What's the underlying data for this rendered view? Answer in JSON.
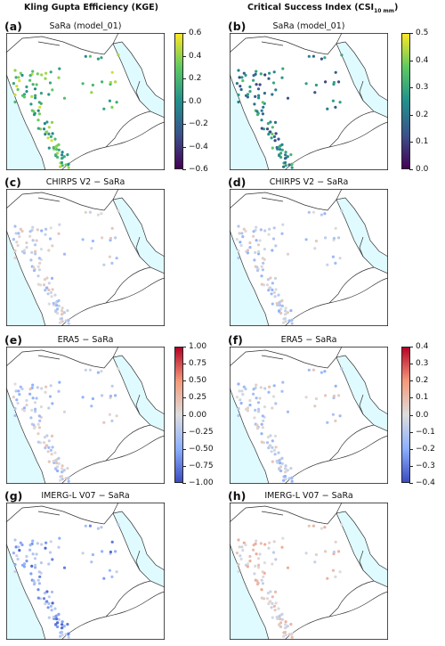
{
  "columns": {
    "left": "Kling Gupta Efficiency (KGE)",
    "right_main": "Critical Success Index (CSI",
    "right_sub": "10 mm",
    "right_close": ")"
  },
  "panels": [
    {
      "id": "a",
      "letter": "(a)",
      "title": "SaRa (model_01)",
      "palette": "viridis",
      "col": 0,
      "row": 0
    },
    {
      "id": "b",
      "letter": "(b)",
      "title": "SaRa (model_01)",
      "palette": "viridis",
      "col": 1,
      "row": 0
    },
    {
      "id": "c",
      "letter": "(c)",
      "title": "CHIRPS V2 − SaRa",
      "palette": "diverging",
      "col": 0,
      "row": 1
    },
    {
      "id": "d",
      "letter": "(d)",
      "title": "CHIRPS V2 − SaRa",
      "palette": "diverging",
      "col": 1,
      "row": 1
    },
    {
      "id": "e",
      "letter": "(e)",
      "title": "ERA5 − SaRa",
      "palette": "diverging",
      "col": 0,
      "row": 2
    },
    {
      "id": "f",
      "letter": "(f)",
      "title": "ERA5 − SaRa",
      "palette": "diverging",
      "col": 1,
      "row": 2
    },
    {
      "id": "g",
      "letter": "(g)",
      "title": "IMERG-L V07 − SaRa",
      "palette": "diverging",
      "col": 0,
      "row": 3
    },
    {
      "id": "h",
      "letter": "(h)",
      "title": "IMERG-L V07 − SaRa",
      "palette": "diverging",
      "col": 1,
      "row": 3
    }
  ],
  "colorbars": [
    {
      "id": "kge-sara",
      "palette": "viridis",
      "ticks": [
        "0.6",
        "0.4",
        "0.2",
        "0.0",
        "−0.2",
        "−0.4",
        "−0.6"
      ]
    },
    {
      "id": "csi-sara",
      "palette": "viridis",
      "ticks": [
        "0.5",
        "0.4",
        "0.3",
        "0.2",
        "0.1",
        "0.0"
      ]
    },
    {
      "id": "kge-diff",
      "palette": "diverging",
      "ticks": [
        "1.00",
        "0.75",
        "0.50",
        "0.25",
        "0.00",
        "−0.25",
        "−0.50",
        "−0.75",
        "−1.00"
      ]
    },
    {
      "id": "csi-diff",
      "palette": "diverging",
      "ticks": [
        "0.4",
        "0.3",
        "0.2",
        "0.1",
        "0.0",
        "−0.1",
        "−0.2",
        "−0.3",
        "−0.4"
      ]
    }
  ],
  "colors": {
    "sea": "#e0fbff",
    "land": "#ffffff",
    "border": "#333333",
    "viridis": [
      "#440154",
      "#3b528b",
      "#21908d",
      "#5dc963",
      "#fde725"
    ],
    "diverging": [
      "#3b4cc0",
      "#8db0fe",
      "#dddddd",
      "#f49a7b",
      "#b40426"
    ]
  }
}
